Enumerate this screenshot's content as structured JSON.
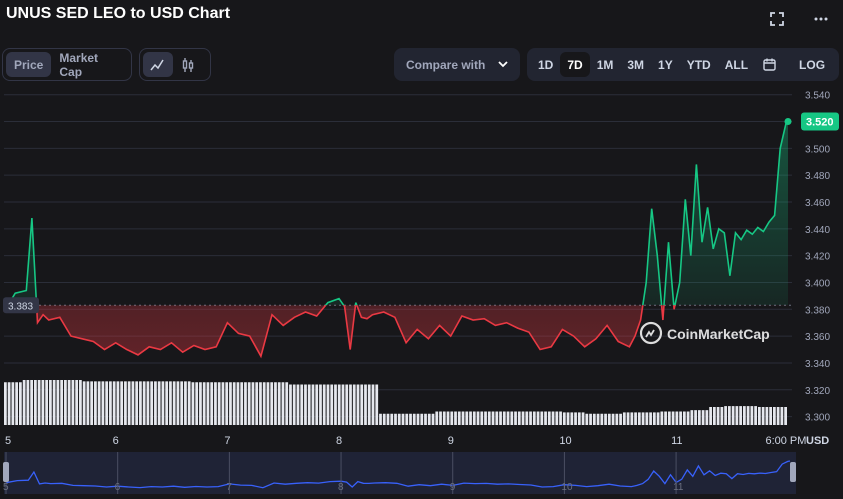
{
  "header": {
    "title": "UNUS SED LEO to USD Chart"
  },
  "toolbar": {
    "data_tabs": [
      "Price",
      "Market Cap"
    ],
    "compare_label": "Compare with",
    "ranges": [
      "1D",
      "7D",
      "1M",
      "3M",
      "1Y",
      "YTD",
      "ALL"
    ],
    "active_range": "7D",
    "log_label": "LOG"
  },
  "colors": {
    "up": "#16c784",
    "down": "#ea3943",
    "background": "#17171a",
    "grid": "#2b2e39",
    "navigator_line": "#3861fb"
  },
  "chart_data": {
    "type": "line",
    "title": "UNUS SED LEO to USD Chart",
    "currency_label": "USD",
    "baseline": 3.383,
    "last_price": 3.52,
    "ylim": [
      3.29,
      3.545
    ],
    "y_ticks": [
      "3.540",
      "3.520",
      "3.500",
      "3.480",
      "3.460",
      "3.440",
      "3.420",
      "3.400",
      "3.380",
      "3.360",
      "3.340",
      "3.320",
      "3.300"
    ],
    "x_ticks": [
      "5",
      "6",
      "7",
      "8",
      "9",
      "10",
      "11",
      "6:00 PM"
    ],
    "x": [
      0,
      0.1,
      0.2,
      0.25,
      0.3,
      0.35,
      0.4,
      0.5,
      0.6,
      0.7,
      0.8,
      0.9,
      1.0,
      1.1,
      1.2,
      1.3,
      1.4,
      1.5,
      1.6,
      1.7,
      1.8,
      1.9,
      2.0,
      2.1,
      2.2,
      2.3,
      2.4,
      2.5,
      2.6,
      2.7,
      2.8,
      2.9,
      3.0,
      3.05,
      3.1,
      3.15,
      3.2,
      3.25,
      3.3,
      3.4,
      3.5,
      3.6,
      3.7,
      3.8,
      3.9,
      4.0,
      4.1,
      4.2,
      4.3,
      4.4,
      4.5,
      4.6,
      4.7,
      4.8,
      4.9,
      5.0,
      5.1,
      5.2,
      5.3,
      5.4,
      5.5,
      5.6,
      5.65,
      5.7,
      5.75,
      5.8,
      5.85,
      5.9,
      5.95,
      6.0,
      6.05,
      6.1,
      6.15,
      6.2,
      6.25,
      6.3,
      6.35,
      6.4,
      6.45,
      6.5,
      6.55,
      6.6,
      6.65,
      6.7,
      6.75,
      6.8,
      6.85,
      6.9,
      6.95,
      7.0,
      7.02
    ],
    "values": [
      3.378,
      3.392,
      3.394,
      3.448,
      3.37,
      3.376,
      3.372,
      3.374,
      3.36,
      3.358,
      3.356,
      3.35,
      3.355,
      3.35,
      3.346,
      3.352,
      3.35,
      3.355,
      3.348,
      3.353,
      3.35,
      3.352,
      3.37,
      3.362,
      3.36,
      3.345,
      3.376,
      3.368,
      3.374,
      3.378,
      3.375,
      3.385,
      3.388,
      3.382,
      3.35,
      3.385,
      3.374,
      3.373,
      3.376,
      3.378,
      3.374,
      3.355,
      3.365,
      3.358,
      3.368,
      3.36,
      3.375,
      3.372,
      3.373,
      3.368,
      3.37,
      3.366,
      3.363,
      3.35,
      3.352,
      3.365,
      3.36,
      3.352,
      3.358,
      3.368,
      3.356,
      3.352,
      3.36,
      3.372,
      3.4,
      3.455,
      3.42,
      3.372,
      3.43,
      3.38,
      3.4,
      3.462,
      3.42,
      3.488,
      3.43,
      3.456,
      3.425,
      3.44,
      3.437,
      3.405,
      3.437,
      3.432,
      3.439,
      3.436,
      3.441,
      3.438,
      3.445,
      3.45,
      3.5,
      3.518,
      3.52
    ],
    "volume_relative": [
      0.95,
      0.95,
      0.95,
      0.95,
      0.95,
      1.0,
      1.0,
      1.0,
      1.0,
      1.0,
      1.0,
      1.0,
      1.0,
      1.0,
      1.0,
      1.0,
      1.0,
      1.0,
      1.0,
      1.0,
      1.0,
      0.97,
      0.97,
      0.97,
      0.97,
      0.97,
      0.97,
      0.97,
      0.97,
      0.97,
      0.97,
      0.97,
      0.97,
      0.97,
      0.97,
      0.97,
      0.97,
      0.97,
      0.97,
      0.97,
      0.97,
      0.97,
      0.97,
      0.97,
      0.97,
      0.97,
      0.97,
      0.97,
      0.97,
      0.97,
      0.95,
      0.95,
      0.95,
      0.95,
      0.95,
      0.95,
      0.95,
      0.95,
      0.95,
      0.95,
      0.95,
      0.95,
      0.95,
      0.95,
      0.95,
      0.95,
      0.95,
      0.95,
      0.95,
      0.95,
      0.95,
      0.95,
      0.95,
      0.95,
      0.95,
      0.95,
      0.9,
      0.9,
      0.9,
      0.9,
      0.9,
      0.9,
      0.9,
      0.9,
      0.9,
      0.9,
      0.9,
      0.9,
      0.9,
      0.9,
      0.9,
      0.9,
      0.9,
      0.9,
      0.9,
      0.9,
      0.9,
      0.9,
      0.9,
      0.9,
      0.25,
      0.25,
      0.25,
      0.25,
      0.25,
      0.25,
      0.25,
      0.25,
      0.25,
      0.25,
      0.25,
      0.25,
      0.25,
      0.25,
      0.25,
      0.3,
      0.3,
      0.3,
      0.3,
      0.3,
      0.3,
      0.3,
      0.3,
      0.3,
      0.3,
      0.3,
      0.3,
      0.3,
      0.3,
      0.3,
      0.3,
      0.3,
      0.3,
      0.3,
      0.3,
      0.3,
      0.3,
      0.3,
      0.3,
      0.3,
      0.3,
      0.3,
      0.3,
      0.3,
      0.3,
      0.3,
      0.3,
      0.3,
      0.3,
      0.28,
      0.28,
      0.28,
      0.28,
      0.28,
      0.28,
      0.25,
      0.25,
      0.25,
      0.25,
      0.25,
      0.25,
      0.25,
      0.25,
      0.25,
      0.25,
      0.28,
      0.28,
      0.28,
      0.28,
      0.28,
      0.28,
      0.28,
      0.28,
      0.28,
      0.28,
      0.3,
      0.3,
      0.3,
      0.3,
      0.3,
      0.3,
      0.3,
      0.3,
      0.33,
      0.33,
      0.33,
      0.33,
      0.33,
      0.4,
      0.4,
      0.4,
      0.4,
      0.42,
      0.42,
      0.42,
      0.42,
      0.42,
      0.42,
      0.42,
      0.42,
      0.42,
      0.4,
      0.4,
      0.4,
      0.4,
      0.4,
      0.4,
      0.4,
      0.4
    ]
  },
  "navigator": {
    "x_ticks": [
      "5",
      "6",
      "7",
      "8",
      "9",
      "10",
      "11"
    ]
  },
  "watermark": "CoinMarketCap"
}
